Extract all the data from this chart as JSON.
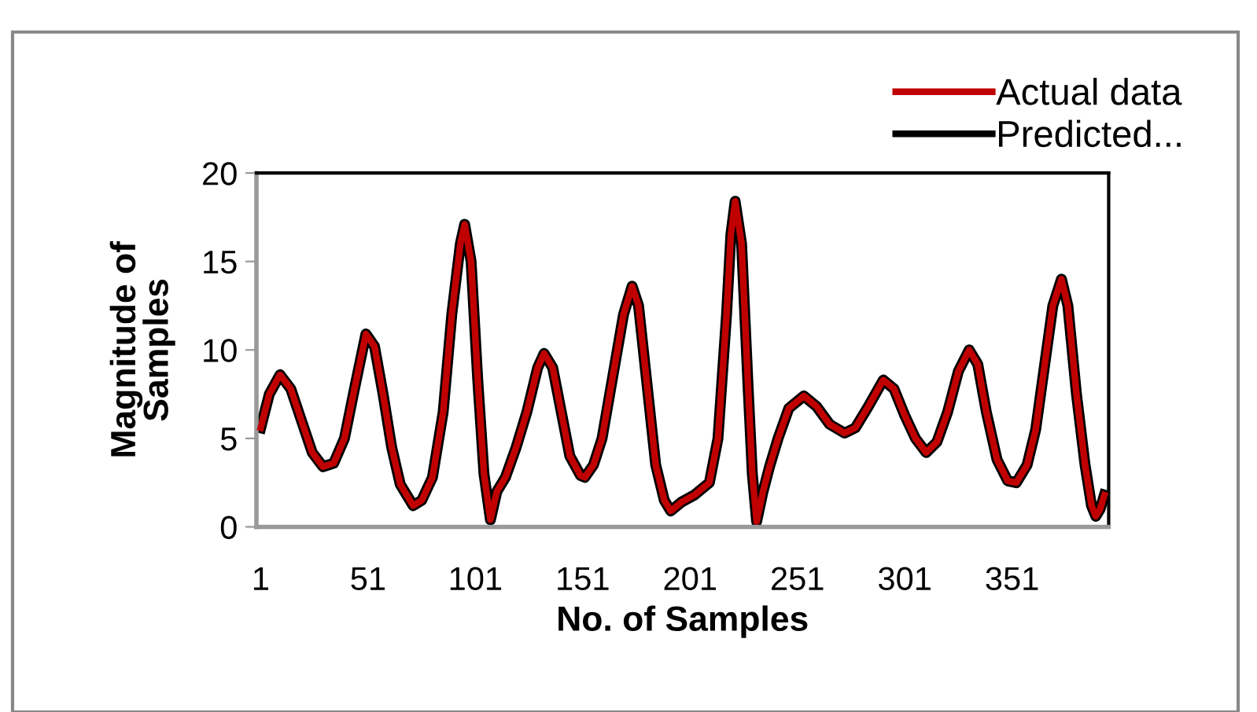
{
  "chart_data": {
    "type": "line",
    "xlabel": "No. of Samples",
    "ylabel": "Magnitude of\nSamples",
    "xlim": [
      -1,
      396
    ],
    "xticks": [
      1,
      51,
      101,
      151,
      201,
      251,
      301,
      351
    ],
    "ylim": [
      0,
      20
    ],
    "yticks": [
      0,
      5,
      10,
      15,
      20
    ],
    "grid": false,
    "legend": "top right",
    "marker": "none",
    "line_style": "solid",
    "x": [
      1,
      5,
      10,
      15,
      20,
      25,
      30,
      35,
      40,
      45,
      50,
      54,
      58,
      62,
      66,
      72,
      76,
      81,
      86,
      90,
      94,
      96,
      99,
      102,
      105,
      108,
      111,
      115,
      120,
      125,
      130,
      133,
      137,
      141,
      145,
      150,
      152,
      156,
      160,
      165,
      170,
      174,
      177,
      181,
      185,
      189,
      192,
      197,
      203,
      210,
      214,
      218,
      220,
      222,
      225,
      228,
      230,
      232,
      235,
      238,
      242,
      247,
      254,
      260,
      266,
      273,
      278,
      284,
      291,
      296,
      301,
      306,
      311,
      316,
      321,
      326,
      331,
      335,
      339,
      344,
      349,
      353,
      358,
      362,
      366,
      370,
      374,
      377,
      381,
      385,
      388,
      390,
      392,
      394
    ],
    "series": [
      {
        "name": "Predicted...",
        "color": "#000000",
        "values": [
          5.6,
          7.5,
          8.6,
          7.8,
          6.0,
          4.2,
          3.4,
          3.6,
          5.0,
          8.0,
          10.9,
          10.2,
          7.5,
          4.5,
          2.4,
          1.2,
          1.5,
          2.8,
          6.5,
          12,
          16.0,
          17.1,
          15.0,
          8.5,
          3.0,
          0.4,
          2.0,
          2.8,
          4.5,
          6.5,
          9.0,
          9.8,
          9.0,
          6.5,
          4.0,
          2.9,
          2.8,
          3.5,
          5.0,
          8.5,
          12.0,
          13.6,
          12.5,
          8.0,
          3.5,
          1.5,
          0.9,
          1.4,
          1.8,
          2.5,
          5,
          12,
          16.5,
          18.4,
          16,
          8,
          3,
          0.3,
          2.0,
          3.4,
          5.0,
          6.7,
          7.4,
          6.8,
          5.8,
          5.3,
          5.6,
          6.8,
          8.3,
          7.8,
          6.3,
          5.0,
          4.2,
          4.8,
          6.5,
          8.8,
          10.0,
          9.2,
          6.5,
          3.8,
          2.6,
          2.5,
          3.5,
          5.5,
          9,
          12.5,
          14.0,
          12.5,
          7.5,
          3.5,
          1.2,
          0.6,
          1.0,
          1.8
        ]
      },
      {
        "name": "Actual data",
        "color": "#c00000",
        "values": [
          5.6,
          7.5,
          8.6,
          7.8,
          6.0,
          4.2,
          3.4,
          3.6,
          5.0,
          8.0,
          10.9,
          10.2,
          7.5,
          4.5,
          2.4,
          1.2,
          1.5,
          2.8,
          6.5,
          12,
          16.0,
          17.1,
          15.0,
          8.5,
          3.0,
          0.4,
          2.0,
          2.8,
          4.5,
          6.5,
          9.0,
          9.8,
          9.0,
          6.5,
          4.0,
          2.9,
          2.8,
          3.5,
          5.0,
          8.5,
          12.0,
          13.6,
          12.5,
          8.0,
          3.5,
          1.5,
          0.9,
          1.4,
          1.8,
          2.5,
          5,
          12,
          16.5,
          18.4,
          16,
          8,
          3,
          0.3,
          2.0,
          3.4,
          5.0,
          6.7,
          7.4,
          6.8,
          5.8,
          5.3,
          5.6,
          6.8,
          8.3,
          7.8,
          6.3,
          5.0,
          4.2,
          4.8,
          6.5,
          8.8,
          10.0,
          9.2,
          6.5,
          3.8,
          2.6,
          2.5,
          3.5,
          5.5,
          9,
          12.5,
          14.0,
          12.5,
          7.5,
          3.5,
          1.2,
          0.6,
          1.0,
          1.8
        ]
      }
    ]
  }
}
